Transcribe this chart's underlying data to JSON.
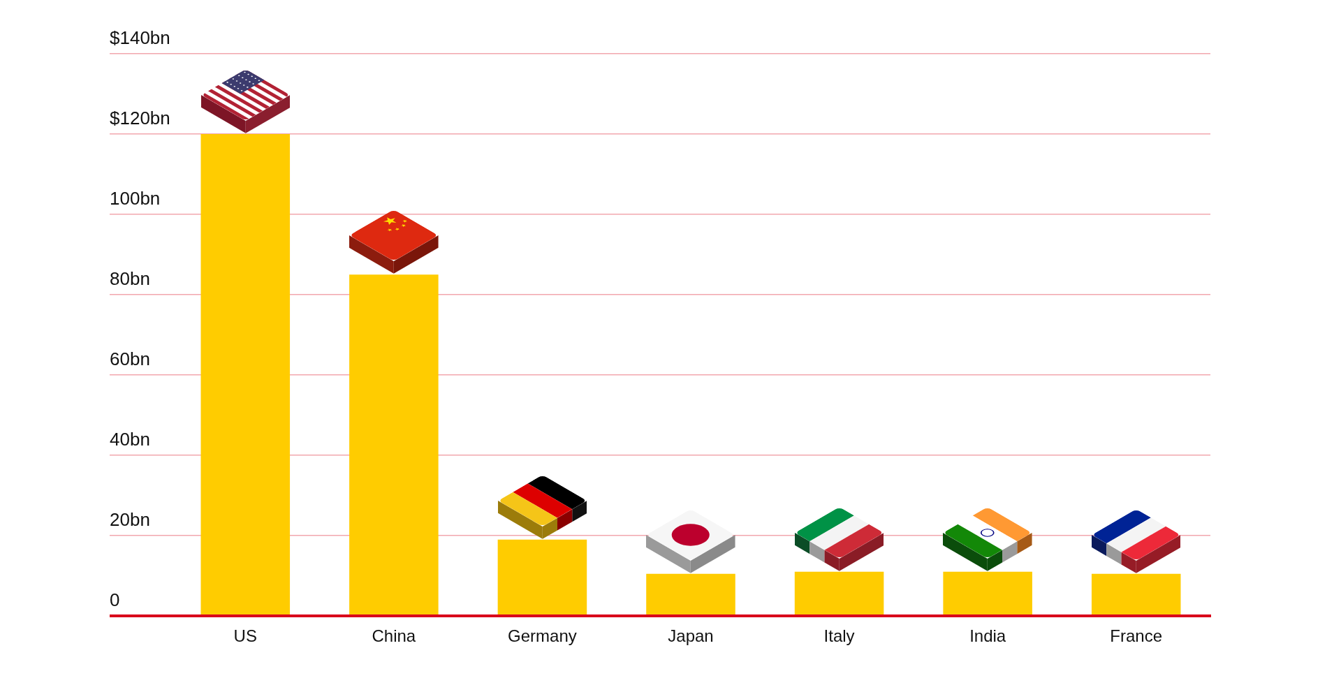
{
  "chart_data": {
    "type": "bar",
    "categories": [
      "US",
      "China",
      "Germany",
      "Japan",
      "Italy",
      "India",
      "France"
    ],
    "values": [
      120,
      85,
      19,
      10.5,
      11,
      11,
      10.5
    ],
    "color": "#ffcc00",
    "ylim": [
      0,
      140
    ],
    "yticks": [
      0,
      {
        "value": 20,
        "label": "20bn"
      },
      {
        "value": 40,
        "label": "40bn"
      },
      {
        "value": 60,
        "label": "60bn"
      },
      {
        "value": 80,
        "label": "80bn"
      },
      {
        "value": 100,
        "label": "100bn"
      },
      {
        "value": 120,
        "label": "$120bn"
      },
      {
        "value": 140,
        "label": "$140bn"
      }
    ],
    "grid": "y"
  }
}
